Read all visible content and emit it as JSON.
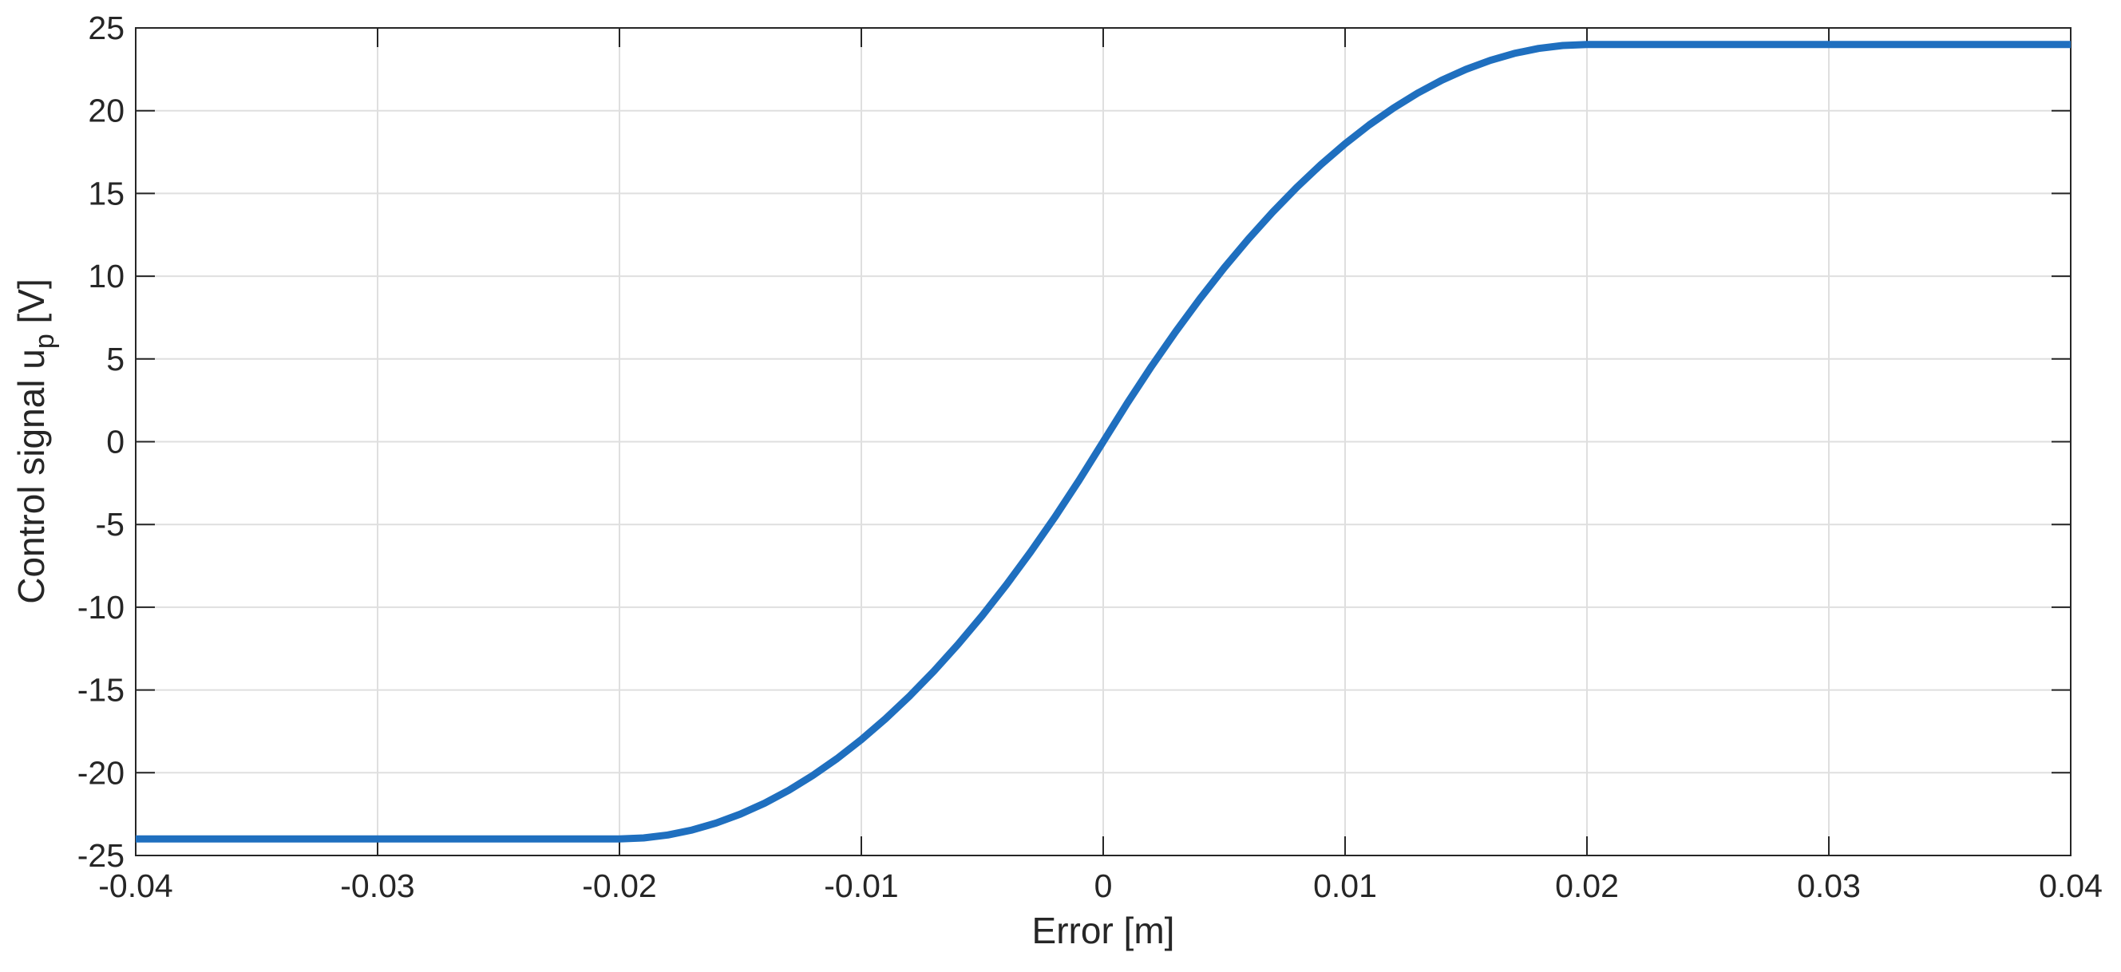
{
  "chart_data": {
    "type": "line",
    "title": "",
    "xlabel": "Error [m]",
    "ylabel": {
      "main": "Control signal u",
      "subscript": "p",
      "unit": " [V]"
    },
    "xlim": [
      -0.04,
      0.04
    ],
    "ylim": [
      -25,
      25
    ],
    "x_ticks": [
      -0.04,
      -0.03,
      -0.02,
      -0.01,
      0,
      0.01,
      0.02,
      0.03,
      0.04
    ],
    "x_tick_labels": [
      "-0.04",
      "-0.03",
      "-0.02",
      "-0.01",
      "0",
      "0.01",
      "0.02",
      "0.03",
      "0.04"
    ],
    "y_ticks": [
      -25,
      -20,
      -15,
      -10,
      -5,
      0,
      5,
      10,
      15,
      20,
      25
    ],
    "y_tick_labels": [
      "-25",
      "-20",
      "-15",
      "-10",
      "-5",
      "0",
      "5",
      "10",
      "15",
      "20",
      "25"
    ],
    "grid": true,
    "line_color": "#1f6fbf",
    "series": [
      {
        "x": [
          -0.04,
          -0.03,
          -0.02,
          -0.019,
          -0.018,
          -0.017,
          -0.016,
          -0.015,
          -0.014,
          -0.013,
          -0.012,
          -0.011,
          -0.01,
          -0.009,
          -0.008,
          -0.007,
          -0.006,
          -0.005,
          -0.004,
          -0.003,
          -0.002,
          -0.001,
          0,
          0.001,
          0.002,
          0.003,
          0.004,
          0.005,
          0.006,
          0.007,
          0.008,
          0.009,
          0.01,
          0.011,
          0.012,
          0.013,
          0.014,
          0.015,
          0.016,
          0.017,
          0.018,
          0.019,
          0.02,
          0.03,
          0.04
        ],
        "values": [
          -24,
          -24,
          -24,
          -23.94,
          -23.76,
          -23.46,
          -23.04,
          -22.5,
          -21.84,
          -21.06,
          -20.16,
          -19.14,
          -18,
          -16.74,
          -15.36,
          -13.86,
          -12.24,
          -10.5,
          -8.64,
          -6.66,
          -4.56,
          -2.34,
          0,
          2.34,
          4.56,
          6.66,
          8.64,
          10.5,
          12.24,
          13.86,
          15.36,
          16.74,
          18,
          19.14,
          20.16,
          21.06,
          21.84,
          22.5,
          23.04,
          23.46,
          23.76,
          23.94,
          24,
          24,
          24
        ]
      }
    ]
  }
}
